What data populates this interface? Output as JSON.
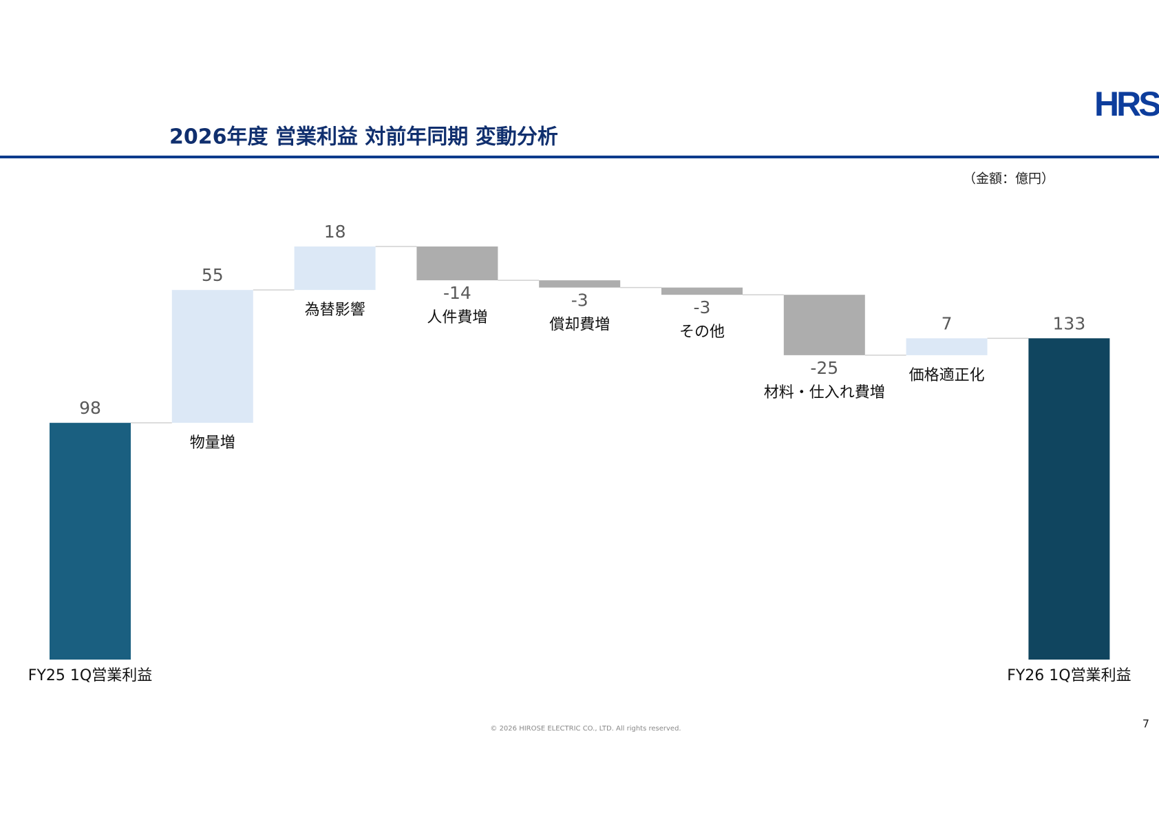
{
  "chart_data": {
    "type": "waterfall",
    "title": "2026年度  営業利益 対前年同期 変動分析",
    "unit_note": "（金額：億円）",
    "categories": [
      "FY25 1Q営業利益",
      "物量増",
      "為替影響",
      "人件費増",
      "償却費増",
      "その他",
      "材料・仕入れ費増",
      "価格適正化",
      "FY26 1Q営業利益"
    ],
    "values": [
      98,
      55,
      18,
      -14,
      -3,
      -3,
      -25,
      7,
      133
    ],
    "colors": {
      "total_start": "#1a5f80",
      "total_end": "#10455f",
      "increase": "#dce8f6",
      "decrease": "#adadad"
    }
  },
  "logo": "HRS",
  "footer": {
    "copyright": "© 2026 HIROSE ELECTRIC CO., LTD. All rights reserved.",
    "page_number": "7"
  }
}
